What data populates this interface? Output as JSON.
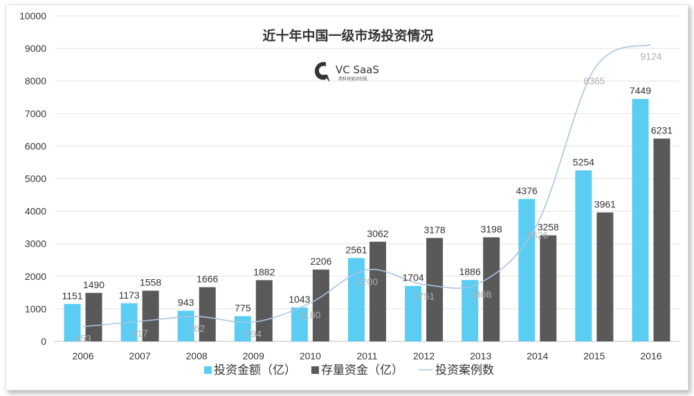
{
  "chart_data": {
    "type": "bar",
    "title": "近十年中国一级市场投资情况",
    "categories": [
      "2006",
      "2007",
      "2008",
      "2009",
      "2010",
      "2011",
      "2012",
      "2013",
      "2014",
      "2015",
      "2016"
    ],
    "series": [
      {
        "name": "投资金额（亿）",
        "kind": "bar",
        "color": "#5bcdf2",
        "values": [
          1151,
          1173,
          943,
          775,
          1043,
          2561,
          1704,
          1886,
          4376,
          5254,
          7449
        ]
      },
      {
        "name": "存量资金（亿）",
        "kind": "bar",
        "color": "#595959",
        "values": [
          1490,
          1558,
          1666,
          1882,
          2206,
          3062,
          3178,
          3198,
          3258,
          3961,
          6231
        ]
      },
      {
        "name": "投资案例数",
        "kind": "line",
        "color": "#a9c4e3",
        "values": [
          453,
          617,
          762,
          594,
          1180,
          2200,
          1751,
          1808,
          3626,
          8365,
          9124
        ]
      }
    ],
    "ylim": [
      0,
      10000
    ],
    "yticks": [
      0,
      1000,
      2000,
      3000,
      4000,
      5000,
      6000,
      7000,
      8000,
      9000,
      10000
    ],
    "grid": true,
    "legend_position": "bottom",
    "xlabel": "",
    "ylabel": ""
  },
  "logo": {
    "name": "VC SaaS",
    "tagline": "用科技驱动创投"
  }
}
